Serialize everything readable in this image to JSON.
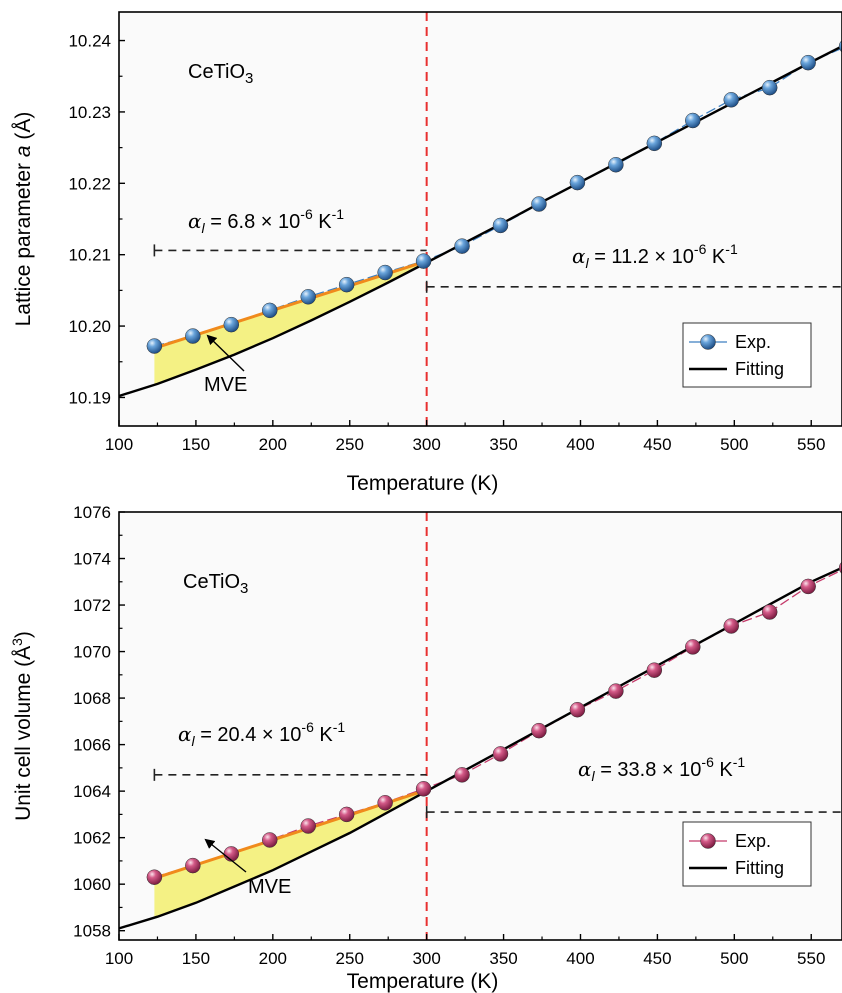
{
  "chart_data": [
    {
      "type": "line",
      "xlabel": "Temperature (K)",
      "ylabel_prefix": "Lattice parameter ",
      "ylabel_italic": "a",
      "ylabel_suffix": " (Å)",
      "xlim": [
        100,
        570
      ],
      "ylim": [
        10.186,
        10.244
      ],
      "xticks": [
        100,
        150,
        200,
        250,
        300,
        350,
        400,
        450,
        500,
        550
      ],
      "yticks": [
        10.19,
        10.2,
        10.21,
        10.22,
        10.23,
        10.24
      ],
      "ytick_decimals": 2,
      "compound_label": "CeTiO",
      "compound_sub": "3",
      "transition_T": 300,
      "series": [
        {
          "name": "Exp.",
          "color": "#3d7fc0",
          "x": [
            123,
            148,
            173,
            198,
            223,
            248,
            273,
            298,
            323,
            348,
            373,
            398,
            423,
            448,
            473,
            498,
            523,
            548,
            573
          ],
          "y": [
            10.1972,
            10.1986,
            10.2002,
            10.2022,
            10.2041,
            10.2058,
            10.2075,
            10.2091,
            10.2112,
            10.2141,
            10.2171,
            10.2201,
            10.2226,
            10.2256,
            10.2288,
            10.2317,
            10.2334,
            10.2369,
            10.2392
          ]
        },
        {
          "name": "Fitting",
          "color": "#000000",
          "x": [
            100,
            125,
            150,
            175,
            200,
            225,
            250,
            275,
            300,
            325,
            350,
            375,
            400,
            425,
            450,
            475,
            500,
            525,
            550,
            570
          ],
          "y": [
            10.1902,
            10.1919,
            10.1939,
            10.196,
            10.1983,
            10.2008,
            10.2034,
            10.2061,
            10.2089,
            10.2117,
            10.2145,
            10.2174,
            10.2202,
            10.223,
            10.2258,
            10.2286,
            10.2314,
            10.2342,
            10.237,
            10.2392
          ]
        }
      ],
      "orange_fit": {
        "color": "#f08a1c",
        "x": [
          123,
          300
        ],
        "y": [
          10.1969,
          10.2091
        ]
      },
      "mve_fill_color": "#f2ef6e",
      "mve_label": "MVE",
      "alpha_low": {
        "symbol": "α",
        "sub": "l",
        "text": " = 6.8 × 10",
        "exp": "-6",
        "unit": " K",
        "unit_exp": "-1",
        "line_y": 10.2106
      },
      "alpha_high": {
        "symbol": "α",
        "sub": "l",
        "text": " = 11.2 × 10",
        "exp": "-6",
        "unit": " K",
        "unit_exp": "-1",
        "line_y": 10.2055
      },
      "legend": [
        "Exp.",
        "Fitting"
      ]
    },
    {
      "type": "line",
      "xlabel": "Temperature (K)",
      "ylabel_prefix": "Unit cell volume (Å",
      "ylabel_italic": "",
      "ylabel_suffix": "",
      "ylabel_sup": "3",
      "ylabel_end": ")",
      "xlim": [
        100,
        570
      ],
      "ylim": [
        1057.6,
        1076.0
      ],
      "xticks": [
        100,
        150,
        200,
        250,
        300,
        350,
        400,
        450,
        500,
        550
      ],
      "yticks": [
        1058,
        1060,
        1062,
        1064,
        1066,
        1068,
        1070,
        1072,
        1074,
        1076
      ],
      "ytick_decimals": 0,
      "compound_label": "CeTiO",
      "compound_sub": "3",
      "transition_T": 300,
      "series": [
        {
          "name": "Exp.",
          "color": "#c43a6a",
          "x": [
            123,
            148,
            173,
            198,
            223,
            248,
            273,
            298,
            323,
            348,
            373,
            398,
            423,
            448,
            473,
            498,
            523,
            548,
            573
          ],
          "y": [
            1060.3,
            1060.8,
            1061.3,
            1061.9,
            1062.5,
            1063.0,
            1063.5,
            1064.1,
            1064.7,
            1065.6,
            1066.6,
            1067.5,
            1068.3,
            1069.2,
            1070.2,
            1071.1,
            1071.7,
            1072.8,
            1073.6
          ]
        },
        {
          "name": "Fitting",
          "color": "#000000",
          "x": [
            100,
            125,
            150,
            175,
            200,
            225,
            250,
            275,
            300,
            325,
            350,
            375,
            400,
            425,
            450,
            475,
            500,
            525,
            550,
            570
          ],
          "y": [
            1058.1,
            1058.6,
            1059.2,
            1059.9,
            1060.6,
            1061.4,
            1062.2,
            1063.1,
            1064.0,
            1064.9,
            1065.8,
            1066.7,
            1067.6,
            1068.5,
            1069.4,
            1070.3,
            1071.2,
            1072.1,
            1073.0,
            1073.6
          ]
        }
      ],
      "orange_fit": {
        "color": "#f08a1c",
        "x": [
          123,
          300
        ],
        "y": [
          1060.25,
          1064.05
        ]
      },
      "mve_fill_color": "#f2ef6e",
      "mve_label": "MVE",
      "alpha_low": {
        "symbol": "α",
        "sub": "l",
        "text": " = 20.4 × 10",
        "exp": "-6",
        "unit": " K",
        "unit_exp": "-1",
        "line_y": 1064.7
      },
      "alpha_high": {
        "symbol": "α",
        "sub": "l",
        "text": " = 33.8 × 10",
        "exp": "-6",
        "unit": " K",
        "unit_exp": "-1",
        "line_y": 1063.1
      },
      "legend": [
        "Exp.",
        "Fitting"
      ]
    }
  ]
}
